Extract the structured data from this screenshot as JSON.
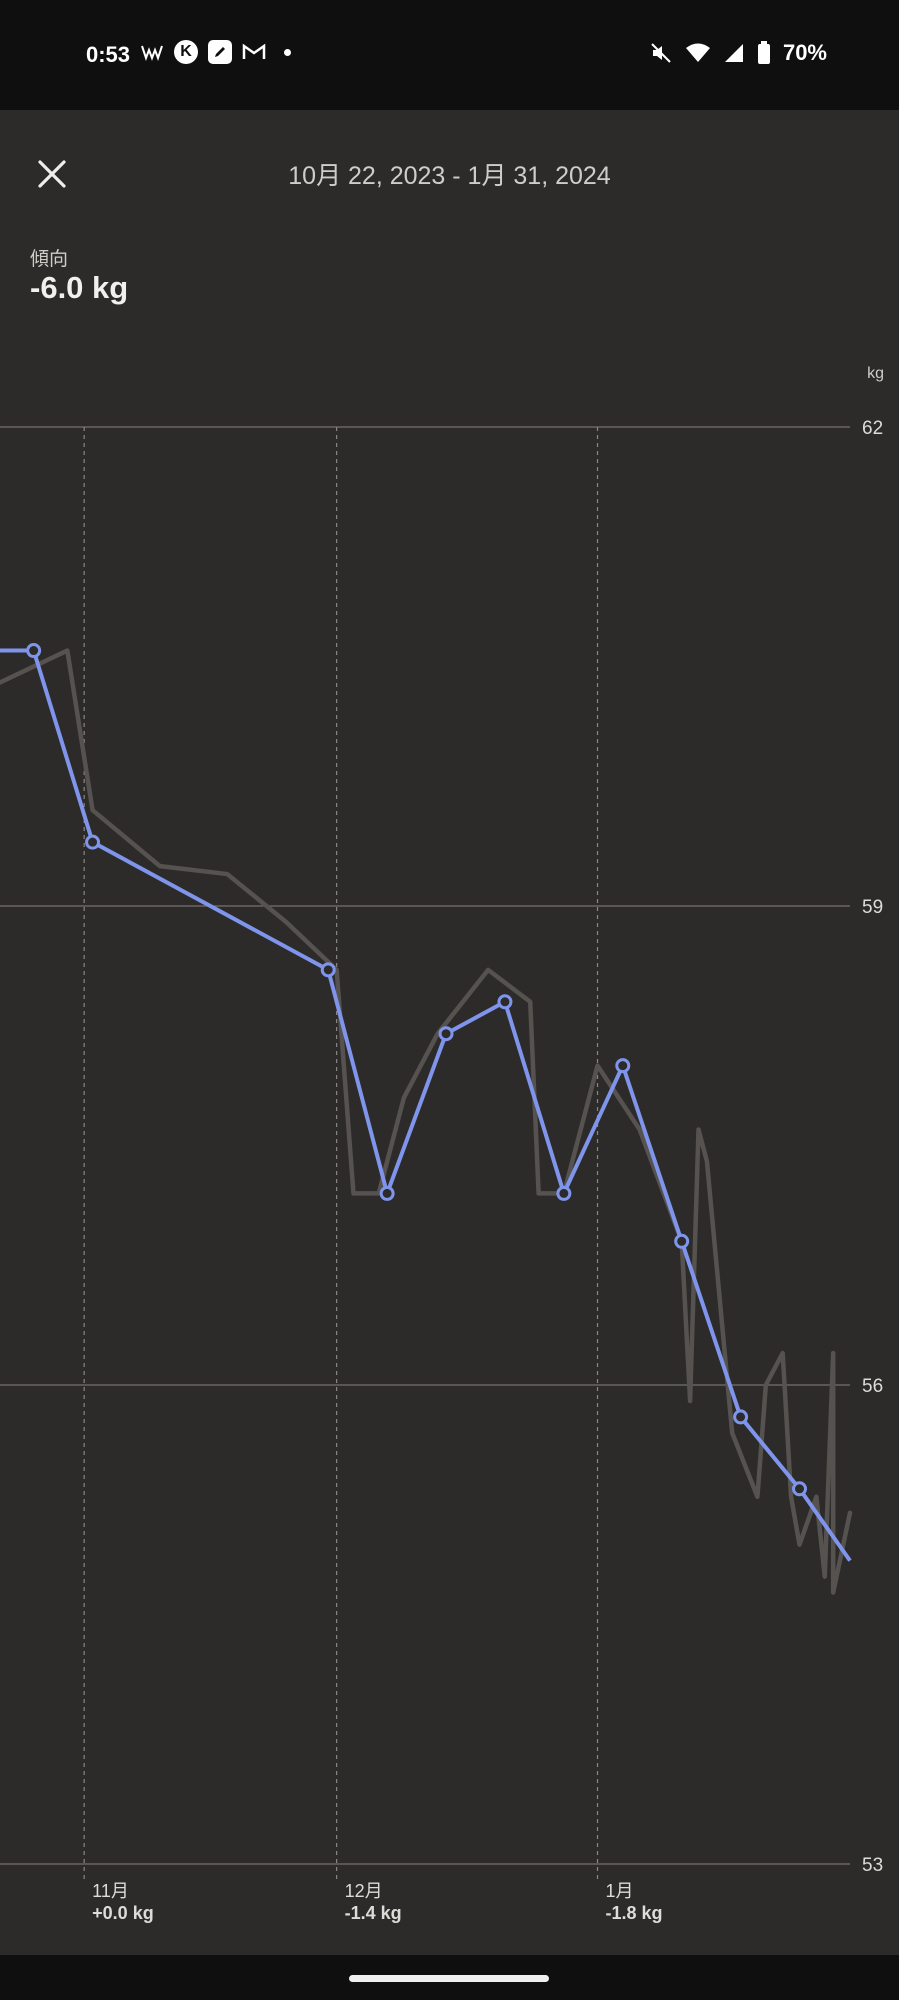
{
  "status_bar": {
    "time": "0:53",
    "left_icons": [
      "news-icon",
      "notification-k-icon",
      "edit-icon",
      "gmail-icon",
      "more-dot-icon"
    ],
    "right_icons": [
      "mute-icon",
      "wifi-icon",
      "signal-icon",
      "battery-icon"
    ],
    "battery": "70%"
  },
  "header": {
    "close_icon": "close-icon",
    "date_range": "10月 22, 2023 - 1月 31, 2024"
  },
  "summary": {
    "label": "傾向",
    "value": "-6.0 kg"
  },
  "colors": {
    "trend_line": "#7f95ec",
    "raw_line": "#55524f",
    "grid": "#74716d",
    "background": "#2d2b29",
    "status_bar": "#0f0f0f"
  },
  "chart_data": {
    "type": "line",
    "unit": "kg",
    "ylim": [
      53,
      62
    ],
    "yticks": [
      "62",
      "59",
      "56",
      "53"
    ],
    "months": [
      {
        "label": "11月",
        "change": "+0.0 kg",
        "date": "2023-11-01"
      },
      {
        "label": "12月",
        "change": "-1.4 kg",
        "date": "2023-12-01"
      },
      {
        "label": "1月",
        "change": "-1.8 kg",
        "date": "2024-01-01"
      }
    ],
    "series": [
      {
        "points": [
          {
            "x": "2023-10-22",
            "y": 60.6
          },
          {
            "x": "2023-10-26",
            "y": 60.6
          },
          {
            "x": "2023-11-02",
            "y": 59.4
          },
          {
            "x": "2023-11-30",
            "y": 58.6
          },
          {
            "x": "2023-12-07",
            "y": 57.2
          },
          {
            "x": "2023-12-14",
            "y": 58.2
          },
          {
            "x": "2023-12-21",
            "y": 58.4
          },
          {
            "x": "2023-12-28",
            "y": 57.2
          },
          {
            "x": "2024-01-04",
            "y": 58.0
          },
          {
            "x": "2024-01-11",
            "y": 56.9
          },
          {
            "x": "2024-01-18",
            "y": 55.8
          },
          {
            "x": "2024-01-25",
            "y": 55.35
          },
          {
            "x": "2024-01-31",
            "y": 54.9
          }
        ]
      },
      {
        "points": [
          {
            "x": "2023-10-22",
            "y": 60.4
          },
          {
            "x": "2023-10-30",
            "y": 60.6
          },
          {
            "x": "2023-11-02",
            "y": 59.6
          },
          {
            "x": "2023-11-10",
            "y": 59.25
          },
          {
            "x": "2023-11-18",
            "y": 59.2
          },
          {
            "x": "2023-11-25",
            "y": 58.9
          },
          {
            "x": "2023-12-01",
            "y": 58.6
          },
          {
            "x": "2023-12-03",
            "y": 57.2
          },
          {
            "x": "2023-12-06",
            "y": 57.2
          },
          {
            "x": "2023-12-09",
            "y": 57.8
          },
          {
            "x": "2023-12-13",
            "y": 58.2
          },
          {
            "x": "2023-12-19",
            "y": 58.6
          },
          {
            "x": "2023-12-24",
            "y": 58.4
          },
          {
            "x": "2023-12-25",
            "y": 57.2
          },
          {
            "x": "2023-12-28",
            "y": 57.2
          },
          {
            "x": "2024-01-01",
            "y": 58.0
          },
          {
            "x": "2024-01-06",
            "y": 57.6
          },
          {
            "x": "2024-01-11",
            "y": 56.9
          },
          {
            "x": "2024-01-12",
            "y": 55.9
          },
          {
            "x": "2024-01-13",
            "y": 57.6
          },
          {
            "x": "2024-01-14",
            "y": 57.4
          },
          {
            "x": "2024-01-17",
            "y": 55.7
          },
          {
            "x": "2024-01-20",
            "y": 55.3
          },
          {
            "x": "2024-01-21",
            "y": 56.0
          },
          {
            "x": "2024-01-23",
            "y": 56.2
          },
          {
            "x": "2024-01-24",
            "y": 55.3
          },
          {
            "x": "2024-01-25",
            "y": 55.0
          },
          {
            "x": "2024-01-27",
            "y": 55.3
          },
          {
            "x": "2024-01-28",
            "y": 54.8
          },
          {
            "x": "2024-01-29",
            "y": 56.2
          },
          {
            "x": "2024-01-29",
            "y": 54.7
          },
          {
            "x": "2024-01-31",
            "y": 55.2
          }
        ]
      }
    ],
    "grid": true
  }
}
